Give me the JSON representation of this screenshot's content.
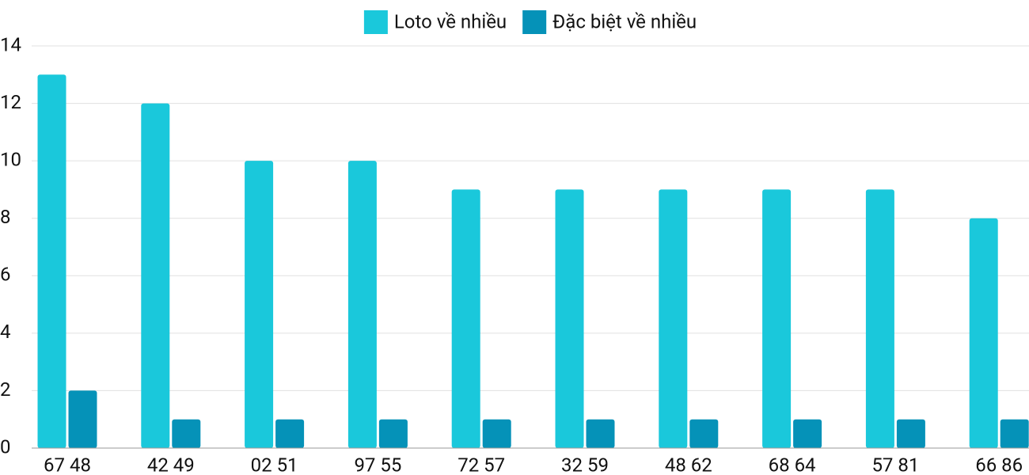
{
  "chart_data": {
    "type": "bar",
    "categories": [
      "67 48",
      "42 49",
      "02 51",
      "97 55",
      "72 57",
      "32 59",
      "48 62",
      "68 64",
      "57 81",
      "66 86"
    ],
    "series": [
      {
        "name": "Loto về nhiều",
        "color": "#1ac8db",
        "values": [
          13,
          12,
          10,
          10,
          9,
          9,
          9,
          9,
          9,
          8
        ]
      },
      {
        "name": "Đặc biệt về nhiều",
        "color": "#0592b8",
        "values": [
          2,
          1,
          1,
          1,
          1,
          1,
          1,
          1,
          1,
          1
        ]
      }
    ],
    "ylim": [
      0,
      14
    ],
    "yticks": [
      0,
      2,
      4,
      6,
      8,
      10,
      12,
      14
    ],
    "grid": true,
    "legend": "top"
  }
}
